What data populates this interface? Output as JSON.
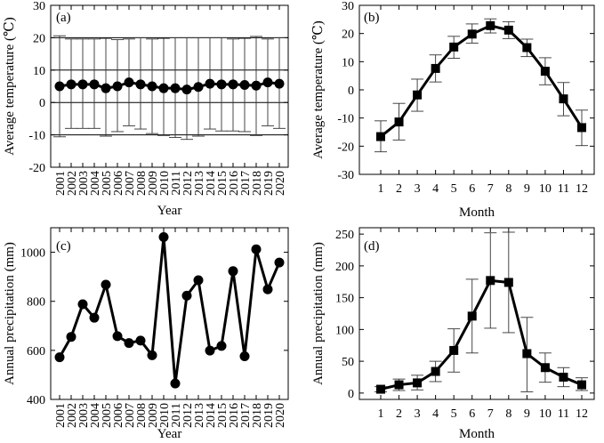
{
  "chart_data": [
    {
      "panel_label": "(a)",
      "type": "line",
      "xlabel": "Year",
      "ylabel": "Average temperature (℃)",
      "ylim": [
        -20,
        30
      ],
      "yticks": [
        -20,
        -10,
        0,
        10,
        20,
        30
      ],
      "categories": [
        "2001",
        "2002",
        "2003",
        "2004",
        "2005",
        "2006",
        "2007",
        "2008",
        "2009",
        "2010",
        "2011",
        "2012",
        "2013",
        "2014",
        "2015",
        "2016",
        "2017",
        "2018",
        "2019",
        "2020"
      ],
      "values": [
        5.0,
        5.6,
        5.6,
        5.6,
        4.4,
        5.0,
        6.2,
        5.6,
        5.0,
        4.4,
        4.4,
        4.0,
        4.8,
        5.8,
        5.6,
        5.6,
        5.4,
        5.2,
        6.2,
        5.8
      ],
      "err_upper": [
        20.6,
        19.6,
        19.6,
        19.6,
        19.8,
        19.4,
        19.6,
        20.0,
        19.6,
        19.8,
        20.0,
        20.0,
        20.0,
        20.0,
        20.0,
        19.6,
        19.8,
        20.4,
        19.6,
        20.0
      ],
      "err_lower": [
        -10.6,
        -8.0,
        -8.0,
        -8.0,
        -10.4,
        -9.0,
        -7.2,
        -8.2,
        -9.6,
        -10.2,
        -10.8,
        -11.4,
        -10.4,
        -8.2,
        -8.8,
        -8.8,
        -9.0,
        -10.2,
        -7.2,
        -8.0
      ],
      "hlines": [
        20,
        10,
        0,
        -10
      ],
      "marker": "circle"
    },
    {
      "panel_label": "(b)",
      "type": "line",
      "xlabel": "Month",
      "ylabel": "Average temperature (℃)",
      "ylim": [
        -30,
        30
      ],
      "yticks": [
        -30,
        -20,
        -10,
        0,
        10,
        20,
        30
      ],
      "categories": [
        "1",
        "2",
        "3",
        "4",
        "5",
        "6",
        "7",
        "8",
        "9",
        "10",
        "11",
        "12"
      ],
      "values": [
        -16.6,
        -11.4,
        -1.8,
        7.6,
        15.2,
        19.8,
        22.8,
        21.2,
        15.0,
        6.6,
        -3.2,
        -13.4
      ],
      "err_upper": [
        -11.0,
        -4.8,
        3.8,
        12.4,
        19.0,
        23.4,
        25.2,
        24.2,
        18.0,
        11.4,
        2.6,
        -7.2
      ],
      "err_lower": [
        -22.0,
        -17.8,
        -7.6,
        2.8,
        11.2,
        16.6,
        20.2,
        18.2,
        11.8,
        1.8,
        -9.2,
        -19.8
      ],
      "marker": "square"
    },
    {
      "panel_label": "(c)",
      "type": "line",
      "xlabel": "Year",
      "ylabel": "Annual precipitation (mm)",
      "ylim": [
        400,
        1100
      ],
      "yticks": [
        400,
        600,
        800,
        1000
      ],
      "categories": [
        "2001",
        "2002",
        "2003",
        "2004",
        "2005",
        "2006",
        "2007",
        "2008",
        "2009",
        "2010",
        "2011",
        "2012",
        "2013",
        "2014",
        "2015",
        "2016",
        "2017",
        "2018",
        "2019",
        "2020"
      ],
      "values": [
        572,
        655,
        788,
        733,
        868,
        658,
        630,
        640,
        580,
        1062,
        465,
        823,
        886,
        599,
        618,
        923,
        576,
        1012,
        849,
        958
      ],
      "marker": "circle"
    },
    {
      "panel_label": "(d)",
      "type": "line",
      "xlabel": "Month",
      "ylabel": "Annual precipitation (mm)",
      "ylim": [
        -10,
        260
      ],
      "yticks": [
        0,
        50,
        100,
        150,
        200,
        250
      ],
      "categories": [
        "1",
        "2",
        "3",
        "4",
        "5",
        "6",
        "7",
        "8",
        "9",
        "10",
        "11",
        "12"
      ],
      "values": [
        6,
        13,
        16,
        34,
        67,
        121,
        177,
        174,
        62,
        40,
        25,
        13
      ],
      "err_upper": [
        10,
        22,
        28,
        50,
        101,
        179,
        252,
        253,
        119,
        63,
        40,
        24
      ],
      "err_lower": [
        2,
        4,
        5,
        18,
        33,
        63,
        102,
        95,
        2,
        17,
        10,
        4
      ],
      "marker": "square"
    }
  ]
}
